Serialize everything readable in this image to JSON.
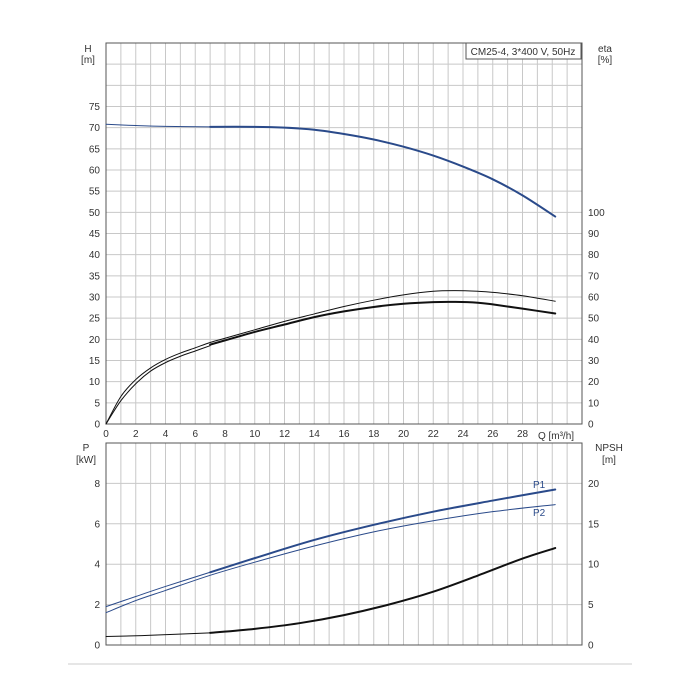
{
  "chart_data": [
    {
      "type": "line",
      "title": "CM25-4, 3*400 V, 50Hz",
      "ylabel_left": [
        "H",
        "[m]"
      ],
      "ylabel_right": [
        "eta",
        "[%]"
      ],
      "xlabel": "Q [m³/h]",
      "xlim": [
        0,
        32
      ],
      "ylim_left": [
        0,
        90
      ],
      "ylim_right": [
        0,
        180
      ],
      "x_ticks": [
        0,
        2,
        4,
        6,
        8,
        10,
        12,
        14,
        16,
        18,
        20,
        22,
        24,
        26,
        28
      ],
      "y_ticks_left": [
        0,
        5,
        10,
        15,
        20,
        25,
        30,
        35,
        40,
        45,
        50,
        55,
        60,
        65,
        70,
        75
      ],
      "y_ticks_right": [
        0,
        10,
        20,
        30,
        40,
        50,
        60,
        70,
        80,
        90,
        100
      ],
      "grid": true,
      "colors": {
        "head": "#2a4a8a",
        "efficiency": "#111111"
      },
      "series": [
        {
          "key": "head_ext",
          "axis": "left",
          "color": "#2a4a8a",
          "width": 1,
          "x": [
            0,
            2,
            4,
            7
          ],
          "y": [
            70.8,
            70.5,
            70.3,
            70.2
          ]
        },
        {
          "key": "head",
          "axis": "left",
          "color": "#2a4a8a",
          "width": 2,
          "x": [
            7,
            10,
            12,
            14,
            16,
            18,
            20,
            22,
            24,
            26,
            28,
            30.2
          ],
          "y": [
            70.2,
            70.2,
            70.0,
            69.5,
            68.5,
            67.2,
            65.5,
            63.4,
            60.8,
            57.8,
            54.0,
            49.0
          ]
        },
        {
          "key": "eta_thin",
          "axis": "right",
          "color": "#111111",
          "width": 1,
          "x": [
            0,
            1,
            2,
            3,
            4,
            5,
            6,
            7,
            8,
            10,
            12,
            14,
            16,
            18,
            20,
            22,
            23.5,
            25,
            26,
            28,
            30.2
          ],
          "y": [
            0,
            13,
            21,
            26.5,
            30.5,
            33.5,
            36,
            38.5,
            40.5,
            44.5,
            48.5,
            52,
            55.5,
            58.5,
            61,
            62.7,
            63,
            62.7,
            62.2,
            60.6,
            58
          ]
        },
        {
          "key": "eta_inner",
          "axis": "right",
          "color": "#111111",
          "width": 1,
          "x": [
            0,
            1,
            2,
            3,
            4,
            5,
            6,
            7
          ],
          "y": [
            0,
            11,
            19,
            25,
            29,
            32,
            34.5,
            37
          ]
        },
        {
          "key": "eta",
          "axis": "right",
          "color": "#111111",
          "width": 2,
          "x": [
            7,
            8,
            10,
            12,
            14,
            16,
            18,
            20,
            22,
            23.5,
            25,
            26,
            28,
            30.2
          ],
          "y": [
            37.5,
            39.5,
            43.5,
            47,
            50.5,
            53.2,
            55.3,
            56.8,
            57.6,
            57.7,
            57.3,
            56.5,
            54.5,
            52.2
          ]
        }
      ]
    },
    {
      "type": "line",
      "ylabel_left": [
        "P",
        "[kW]"
      ],
      "ylabel_right": [
        "NPSH",
        "[m]"
      ],
      "xlim": [
        0,
        32
      ],
      "ylim_left": [
        0,
        10
      ],
      "ylim_right": [
        0,
        25
      ],
      "x_ticks": [
        0,
        2,
        4,
        6,
        8,
        10,
        12,
        14,
        16,
        18,
        20,
        22,
        24,
        26,
        28
      ],
      "y_ticks_left": [
        0,
        2,
        4,
        6,
        8
      ],
      "y_ticks_right": [
        0,
        5,
        10,
        15,
        20
      ],
      "grid": true,
      "colors": {
        "power": "#2a4a8a",
        "npsh": "#111111"
      },
      "series": [
        {
          "key": "p1_ext",
          "axis": "left",
          "color": "#2a4a8a",
          "width": 1,
          "x": [
            0,
            2,
            4,
            7
          ],
          "y": [
            1.9,
            2.4,
            2.9,
            3.6
          ]
        },
        {
          "key": "p1",
          "axis": "left",
          "color": "#2a4a8a",
          "width": 2,
          "name": "P1",
          "x": [
            7,
            10,
            14,
            18,
            22,
            26,
            30.2
          ],
          "y": [
            3.6,
            4.3,
            5.2,
            5.95,
            6.6,
            7.15,
            7.7
          ]
        },
        {
          "key": "p2",
          "axis": "left",
          "color": "#2a4a8a",
          "width": 1,
          "name": "P2",
          "x": [
            0,
            2,
            4,
            7,
            10,
            14,
            18,
            22,
            26,
            30.2
          ],
          "y": [
            1.6,
            2.2,
            2.7,
            3.45,
            4.1,
            4.9,
            5.6,
            6.15,
            6.6,
            6.95
          ]
        },
        {
          "key": "npsh_ext",
          "axis": "right",
          "color": "#111111",
          "width": 1,
          "x": [
            0,
            3,
            7
          ],
          "y": [
            1.05,
            1.2,
            1.5
          ]
        },
        {
          "key": "npsh",
          "axis": "right",
          "color": "#111111",
          "width": 2,
          "x": [
            7,
            10,
            13,
            16,
            19,
            22,
            25,
            28,
            30.2
          ],
          "y": [
            1.5,
            2.0,
            2.7,
            3.7,
            5.0,
            6.6,
            8.6,
            10.7,
            12.0
          ]
        }
      ]
    }
  ]
}
